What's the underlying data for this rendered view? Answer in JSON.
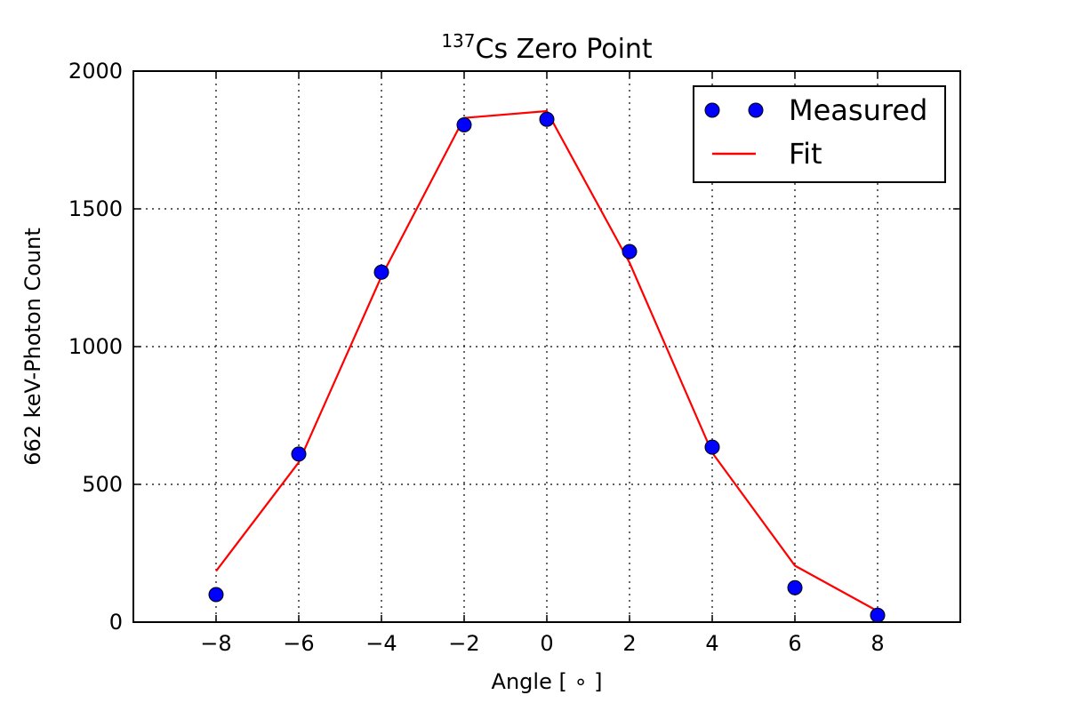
{
  "chart_data": {
    "type": "scatter",
    "title_sup": "137",
    "title_main": "Cs Zero Point",
    "xlabel": "Angle [ ∘ ]",
    "ylabel": "662 keV-Photon Count",
    "xlim": [
      -10,
      10
    ],
    "ylim": [
      0,
      2000
    ],
    "xticks": [
      -8,
      -6,
      -4,
      -2,
      0,
      2,
      4,
      6,
      8
    ],
    "xtick_labels": [
      "−8",
      "−6",
      "−4",
      "−2",
      "0",
      "2",
      "4",
      "6",
      "8"
    ],
    "yticks": [
      0,
      500,
      1000,
      1500,
      2000
    ],
    "ytick_labels": [
      "0",
      "500",
      "1000",
      "1500",
      "2000"
    ],
    "grid": true,
    "legend_position": "top-right",
    "series": [
      {
        "name": "Measured",
        "kind": "markers",
        "color": "#0000ff",
        "x": [
          -8,
          -6,
          -4,
          -2,
          0,
          2,
          4,
          6,
          8
        ],
        "y": [
          100,
          610,
          1270,
          1805,
          1825,
          1345,
          635,
          125,
          25
        ]
      },
      {
        "name": "Fit",
        "kind": "line",
        "color": "#ff0000",
        "x": [
          -8,
          -6,
          -4,
          -2,
          0,
          2,
          4,
          6,
          8
        ],
        "y": [
          185,
          580,
          1255,
          1830,
          1855,
          1305,
          615,
          205,
          40
        ]
      }
    ]
  }
}
